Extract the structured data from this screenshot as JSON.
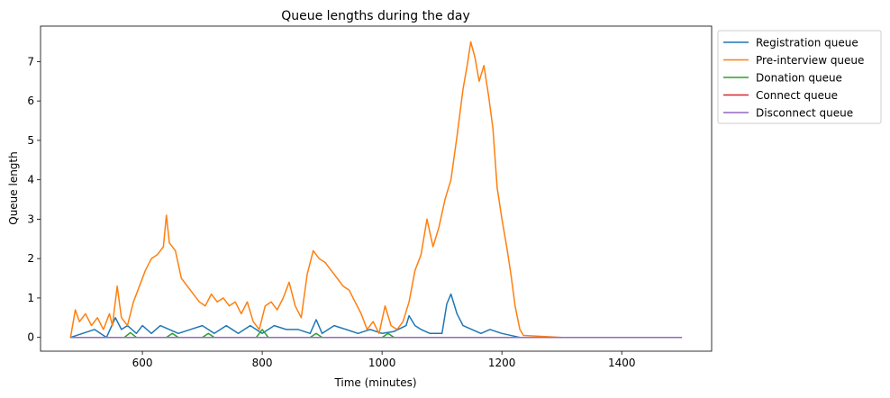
{
  "chart_data": {
    "type": "line",
    "title": "Queue lengths during the day",
    "xlabel": "Time (minutes)",
    "ylabel": "Queue length",
    "xlim": [
      430,
      1550
    ],
    "ylim": [
      -0.35,
      7.9
    ],
    "xticks": [
      600,
      800,
      1000,
      1200,
      1400
    ],
    "yticks": [
      0,
      1,
      2,
      3,
      4,
      5,
      6,
      7
    ],
    "grid": false,
    "legend_position": "outside-upper-right",
    "series": [
      {
        "name": "Registration queue",
        "color": "#1f77b4",
        "x": [
          480,
          500,
          520,
          540,
          555,
          565,
          575,
          590,
          600,
          615,
          630,
          645,
          660,
          680,
          700,
          720,
          740,
          760,
          780,
          800,
          820,
          840,
          860,
          880,
          890,
          900,
          920,
          940,
          960,
          980,
          1000,
          1020,
          1040,
          1045,
          1055,
          1065,
          1080,
          1100,
          1108,
          1115,
          1125,
          1135,
          1150,
          1165,
          1180,
          1200,
          1230,
          1300,
          1400,
          1500
        ],
        "y": [
          0.0,
          0.1,
          0.2,
          0.0,
          0.5,
          0.2,
          0.3,
          0.1,
          0.3,
          0.1,
          0.3,
          0.2,
          0.1,
          0.2,
          0.3,
          0.1,
          0.3,
          0.1,
          0.3,
          0.1,
          0.3,
          0.2,
          0.2,
          0.1,
          0.45,
          0.1,
          0.3,
          0.2,
          0.1,
          0.2,
          0.1,
          0.15,
          0.3,
          0.55,
          0.3,
          0.2,
          0.1,
          0.1,
          0.85,
          1.1,
          0.6,
          0.3,
          0.2,
          0.1,
          0.2,
          0.1,
          0.0,
          0.0,
          0.0,
          0.0
        ]
      },
      {
        "name": "Pre-interview queue",
        "color": "#ff7f0e",
        "x": [
          480,
          488,
          495,
          505,
          515,
          525,
          535,
          545,
          550,
          558,
          565,
          575,
          585,
          595,
          605,
          615,
          625,
          635,
          640,
          645,
          655,
          665,
          675,
          685,
          695,
          705,
          715,
          725,
          735,
          745,
          755,
          765,
          775,
          785,
          795,
          805,
          815,
          825,
          835,
          845,
          855,
          865,
          875,
          885,
          895,
          905,
          915,
          925,
          935,
          945,
          955,
          965,
          975,
          985,
          995,
          1005,
          1015,
          1025,
          1035,
          1045,
          1055,
          1065,
          1075,
          1085,
          1095,
          1105,
          1115,
          1125,
          1135,
          1142,
          1148,
          1155,
          1162,
          1170,
          1178,
          1185,
          1192,
          1200,
          1208,
          1215,
          1222,
          1230,
          1236,
          1300,
          1400,
          1500
        ],
        "y": [
          0.0,
          0.7,
          0.4,
          0.6,
          0.3,
          0.5,
          0.2,
          0.6,
          0.3,
          1.3,
          0.5,
          0.3,
          0.9,
          1.3,
          1.7,
          2.0,
          2.1,
          2.3,
          3.1,
          2.4,
          2.2,
          1.5,
          1.3,
          1.1,
          0.9,
          0.8,
          1.1,
          0.9,
          1.0,
          0.8,
          0.9,
          0.6,
          0.9,
          0.4,
          0.2,
          0.8,
          0.9,
          0.7,
          1.0,
          1.4,
          0.8,
          0.5,
          1.6,
          2.2,
          2.0,
          1.9,
          1.7,
          1.5,
          1.3,
          1.2,
          0.9,
          0.6,
          0.2,
          0.4,
          0.1,
          0.8,
          0.3,
          0.2,
          0.4,
          0.9,
          1.7,
          2.1,
          3.0,
          2.3,
          2.8,
          3.5,
          4.0,
          5.1,
          6.3,
          6.9,
          7.5,
          7.1,
          6.5,
          6.9,
          6.1,
          5.3,
          3.8,
          3.0,
          2.3,
          1.6,
          0.8,
          0.2,
          0.05,
          0.0,
          0.0,
          0.0
        ]
      },
      {
        "name": "Donation queue",
        "color": "#2ca02c",
        "x": [
          480,
          570,
          580,
          590,
          640,
          650,
          660,
          700,
          710,
          720,
          790,
          800,
          810,
          880,
          890,
          900,
          1000,
          1010,
          1020,
          1500
        ],
        "y": [
          0.0,
          0.0,
          0.12,
          0.0,
          0.0,
          0.1,
          0.0,
          0.0,
          0.1,
          0.0,
          0.0,
          0.2,
          0.0,
          0.0,
          0.1,
          0.0,
          0.0,
          0.1,
          0.0,
          0.0
        ]
      },
      {
        "name": "Connect queue",
        "color": "#d62728",
        "x": [
          480,
          1500
        ],
        "y": [
          0.0,
          0.0
        ]
      },
      {
        "name": "Disconnect queue",
        "color": "#9467bd",
        "x": [
          480,
          1500
        ],
        "y": [
          0.0,
          0.0
        ]
      }
    ]
  }
}
